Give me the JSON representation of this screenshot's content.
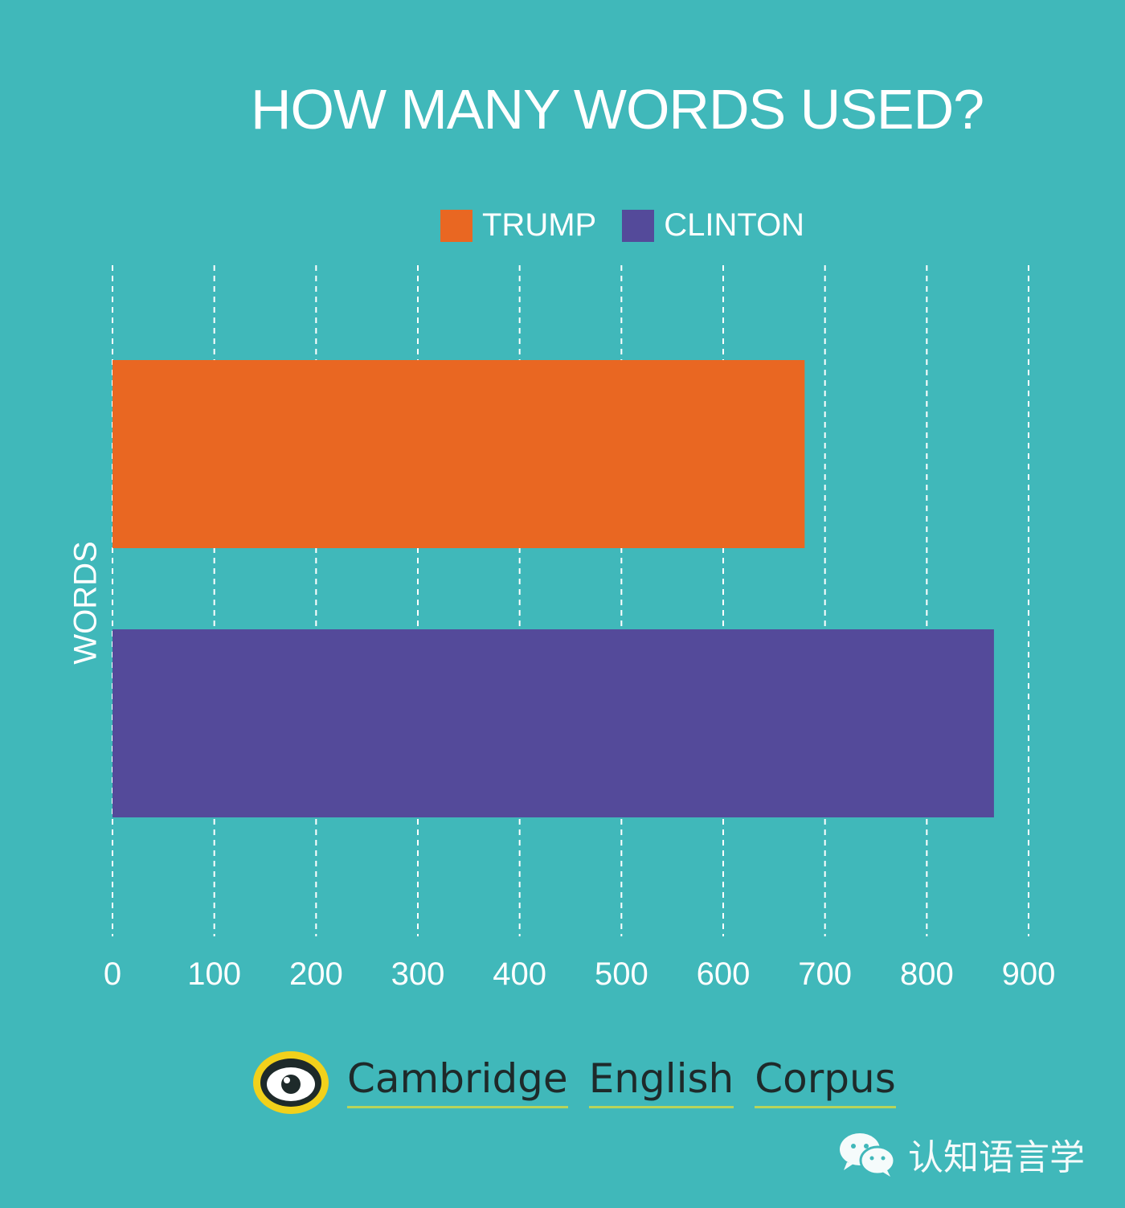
{
  "chart_data": {
    "type": "bar",
    "orientation": "horizontal",
    "title": "HOW MANY WORDS USED?",
    "ylabel": "WORDS",
    "xlim": [
      0,
      900
    ],
    "xticks": [
      "0",
      "100",
      "200",
      "300",
      "400",
      "500",
      "600",
      "700",
      "800",
      "900"
    ],
    "grid": true,
    "legend_position": "top-center",
    "series": [
      {
        "name": "TRUMP",
        "value": 680,
        "color": "#e96722"
      },
      {
        "name": "CLINTON",
        "value": 866,
        "color": "#544a9a"
      }
    ]
  },
  "branding": {
    "logo_words": [
      "Cambridge",
      "English",
      "Corpus"
    ],
    "watermark_text": "认知语言学",
    "watermark_icon": "wechat-icon",
    "logo_icon": "eye-logo-icon"
  },
  "colors": {
    "background": "#40b8ba",
    "text": "#ffffff",
    "logo_ring": "#f2d11b",
    "logo_underline": "#b7d45a"
  }
}
